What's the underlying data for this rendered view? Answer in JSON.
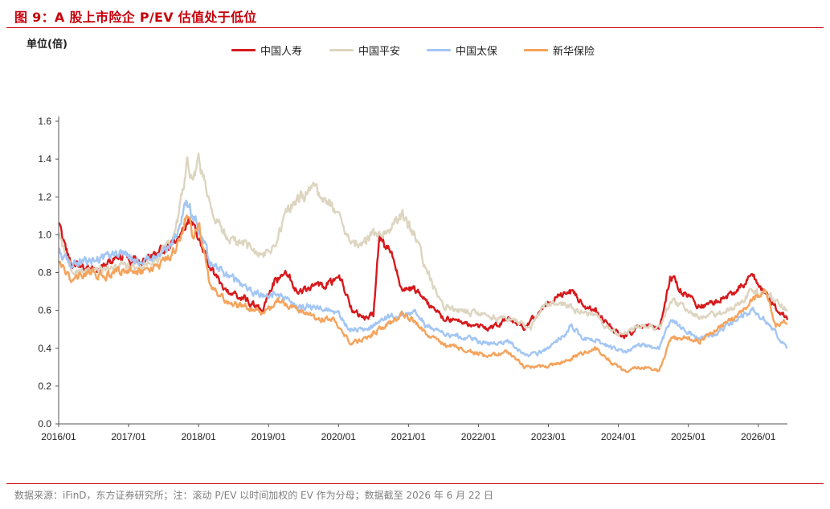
{
  "figure": {
    "title": "图 9：A 股上市险企 P/EV 估值处于低位",
    "footnote": "数据来源：iFinD，东方证券研究所；注：滚动 P/EV 以时间加权的 EV 作为分母；数据截至 2026 年 6 月 22 日",
    "accent_color": "#c7000b"
  },
  "chart_data": {
    "type": "line",
    "ylabel": "单位(倍)",
    "xlabel": "",
    "ylim": [
      0,
      1.6
    ],
    "yticks": [
      "0.0",
      "0.2",
      "0.4",
      "0.6",
      "0.8",
      "1.0",
      "1.2",
      "1.4",
      "1.6"
    ],
    "xticks": [
      "2016/01",
      "2017/01",
      "2018/01",
      "2019/01",
      "2020/01",
      "2021/01",
      "2022/01",
      "2023/01",
      "2024/01",
      "2025/01",
      "2026/01"
    ],
    "xlim": [
      "2016/01",
      "2026/06"
    ],
    "grid": false,
    "legend_position": "top",
    "series": [
      {
        "name": "中国人寿",
        "color": "#d7191c",
        "points": [
          [
            "2016/01",
            1.05
          ],
          [
            "2016/03",
            0.86
          ],
          [
            "2016/06",
            0.82
          ],
          [
            "2016/09",
            0.84
          ],
          [
            "2016/12",
            0.88
          ],
          [
            "2017/03",
            0.86
          ],
          [
            "2017/06",
            0.9
          ],
          [
            "2017/09",
            0.96
          ],
          [
            "2017/11",
            1.05
          ],
          [
            "2017/12",
            1.08
          ],
          [
            "2018/01",
            0.98
          ],
          [
            "2018/03",
            0.82
          ],
          [
            "2018/06",
            0.7
          ],
          [
            "2018/09",
            0.66
          ],
          [
            "2018/12",
            0.6
          ],
          [
            "2019/02",
            0.75
          ],
          [
            "2019/04",
            0.8
          ],
          [
            "2019/06",
            0.7
          ],
          [
            "2019/09",
            0.72
          ],
          [
            "2019/12",
            0.75
          ],
          [
            "2020/01",
            0.8
          ],
          [
            "2020/03",
            0.62
          ],
          [
            "2020/05",
            0.56
          ],
          [
            "2020/07",
            0.58
          ],
          [
            "2020/08",
            1.0
          ],
          [
            "2020/10",
            0.9
          ],
          [
            "2020/12",
            0.7
          ],
          [
            "2021/02",
            0.72
          ],
          [
            "2021/04",
            0.65
          ],
          [
            "2021/07",
            0.56
          ],
          [
            "2021/12",
            0.52
          ],
          [
            "2022/03",
            0.5
          ],
          [
            "2022/06",
            0.56
          ],
          [
            "2022/09",
            0.5
          ],
          [
            "2022/12",
            0.62
          ],
          [
            "2023/03",
            0.68
          ],
          [
            "2023/05",
            0.7
          ],
          [
            "2023/07",
            0.62
          ],
          [
            "2023/09",
            0.6
          ],
          [
            "2023/12",
            0.5
          ],
          [
            "2024/02",
            0.46
          ],
          [
            "2024/05",
            0.52
          ],
          [
            "2024/08",
            0.5
          ],
          [
            "2024/10",
            0.78
          ],
          [
            "2024/12",
            0.7
          ],
          [
            "2025/03",
            0.62
          ],
          [
            "2025/06",
            0.65
          ],
          [
            "2025/09",
            0.7
          ],
          [
            "2025/12",
            0.78
          ],
          [
            "2026/02",
            0.7
          ],
          [
            "2026/04",
            0.62
          ],
          [
            "2026/06",
            0.56
          ]
        ]
      },
      {
        "name": "中国平安",
        "color": "#ddd5c0",
        "points": [
          [
            "2016/01",
            1.0
          ],
          [
            "2016/03",
            0.82
          ],
          [
            "2016/06",
            0.8
          ],
          [
            "2016/09",
            0.82
          ],
          [
            "2016/12",
            0.84
          ],
          [
            "2017/03",
            0.82
          ],
          [
            "2017/06",
            0.88
          ],
          [
            "2017/09",
            1.0
          ],
          [
            "2017/11",
            1.38
          ],
          [
            "2017/12",
            1.3
          ],
          [
            "2018/01",
            1.4
          ],
          [
            "2018/03",
            1.15
          ],
          [
            "2018/06",
            0.98
          ],
          [
            "2018/09",
            0.95
          ],
          [
            "2018/12",
            0.88
          ],
          [
            "2019/02",
            0.95
          ],
          [
            "2019/04",
            1.1
          ],
          [
            "2019/06",
            1.2
          ],
          [
            "2019/09",
            1.24
          ],
          [
            "2019/12",
            1.15
          ],
          [
            "2020/01",
            1.12
          ],
          [
            "2020/03",
            0.95
          ],
          [
            "2020/06",
            0.98
          ],
          [
            "2020/09",
            1.02
          ],
          [
            "2020/12",
            1.1
          ],
          [
            "2021/02",
            1.0
          ],
          [
            "2021/04",
            0.82
          ],
          [
            "2021/07",
            0.62
          ],
          [
            "2021/10",
            0.6
          ],
          [
            "2022/01",
            0.58
          ],
          [
            "2022/04",
            0.56
          ],
          [
            "2022/07",
            0.55
          ],
          [
            "2022/10",
            0.5
          ],
          [
            "2022/12",
            0.62
          ],
          [
            "2023/03",
            0.65
          ],
          [
            "2023/06",
            0.6
          ],
          [
            "2023/09",
            0.57
          ],
          [
            "2023/12",
            0.48
          ],
          [
            "2024/02",
            0.48
          ],
          [
            "2024/05",
            0.52
          ],
          [
            "2024/08",
            0.5
          ],
          [
            "2024/10",
            0.65
          ],
          [
            "2024/12",
            0.62
          ],
          [
            "2025/03",
            0.56
          ],
          [
            "2025/06",
            0.58
          ],
          [
            "2025/09",
            0.62
          ],
          [
            "2025/12",
            0.7
          ],
          [
            "2026/03",
            0.68
          ],
          [
            "2026/06",
            0.6
          ]
        ]
      },
      {
        "name": "中国太保",
        "color": "#a3c6f4",
        "points": [
          [
            "2016/01",
            0.92
          ],
          [
            "2016/03",
            0.84
          ],
          [
            "2016/06",
            0.86
          ],
          [
            "2016/09",
            0.88
          ],
          [
            "2016/12",
            0.9
          ],
          [
            "2017/03",
            0.85
          ],
          [
            "2017/06",
            0.88
          ],
          [
            "2017/09",
            0.98
          ],
          [
            "2017/11",
            1.18
          ],
          [
            "2017/12",
            1.1
          ],
          [
            "2018/01",
            1.05
          ],
          [
            "2018/03",
            0.85
          ],
          [
            "2018/06",
            0.78
          ],
          [
            "2018/09",
            0.72
          ],
          [
            "2018/12",
            0.68
          ],
          [
            "2019/03",
            0.68
          ],
          [
            "2019/06",
            0.62
          ],
          [
            "2019/09",
            0.62
          ],
          [
            "2019/12",
            0.6
          ],
          [
            "2020/01",
            0.58
          ],
          [
            "2020/03",
            0.5
          ],
          [
            "2020/06",
            0.5
          ],
          [
            "2020/09",
            0.56
          ],
          [
            "2020/12",
            0.58
          ],
          [
            "2021/02",
            0.6
          ],
          [
            "2021/04",
            0.52
          ],
          [
            "2021/07",
            0.48
          ],
          [
            "2021/12",
            0.45
          ],
          [
            "2022/03",
            0.42
          ],
          [
            "2022/06",
            0.44
          ],
          [
            "2022/09",
            0.36
          ],
          [
            "2022/12",
            0.38
          ],
          [
            "2023/03",
            0.45
          ],
          [
            "2023/05",
            0.52
          ],
          [
            "2023/07",
            0.45
          ],
          [
            "2023/09",
            0.44
          ],
          [
            "2023/12",
            0.4
          ],
          [
            "2024/02",
            0.38
          ],
          [
            "2024/05",
            0.42
          ],
          [
            "2024/08",
            0.4
          ],
          [
            "2024/10",
            0.55
          ],
          [
            "2024/12",
            0.5
          ],
          [
            "2025/03",
            0.45
          ],
          [
            "2025/06",
            0.48
          ],
          [
            "2025/09",
            0.55
          ],
          [
            "2025/12",
            0.6
          ],
          [
            "2026/03",
            0.52
          ],
          [
            "2026/06",
            0.4
          ]
        ]
      },
      {
        "name": "新华保险",
        "color": "#f5a35c",
        "points": [
          [
            "2016/01",
            0.85
          ],
          [
            "2016/03",
            0.76
          ],
          [
            "2016/06",
            0.8
          ],
          [
            "2016/09",
            0.78
          ],
          [
            "2016/12",
            0.82
          ],
          [
            "2017/03",
            0.8
          ],
          [
            "2017/06",
            0.82
          ],
          [
            "2017/09",
            0.92
          ],
          [
            "2017/11",
            1.1
          ],
          [
            "2017/12",
            1.0
          ],
          [
            "2018/01",
            1.08
          ],
          [
            "2018/03",
            0.72
          ],
          [
            "2018/06",
            0.64
          ],
          [
            "2018/09",
            0.62
          ],
          [
            "2018/12",
            0.58
          ],
          [
            "2019/03",
            0.65
          ],
          [
            "2019/06",
            0.6
          ],
          [
            "2019/09",
            0.56
          ],
          [
            "2019/12",
            0.55
          ],
          [
            "2020/01",
            0.52
          ],
          [
            "2020/03",
            0.42
          ],
          [
            "2020/06",
            0.46
          ],
          [
            "2020/09",
            0.52
          ],
          [
            "2020/12",
            0.58
          ],
          [
            "2021/02",
            0.55
          ],
          [
            "2021/04",
            0.48
          ],
          [
            "2021/07",
            0.42
          ],
          [
            "2021/12",
            0.38
          ],
          [
            "2022/03",
            0.36
          ],
          [
            "2022/06",
            0.38
          ],
          [
            "2022/09",
            0.3
          ],
          [
            "2022/12",
            0.3
          ],
          [
            "2023/03",
            0.32
          ],
          [
            "2023/06",
            0.36
          ],
          [
            "2023/09",
            0.4
          ],
          [
            "2023/12",
            0.32
          ],
          [
            "2024/02",
            0.28
          ],
          [
            "2024/05",
            0.3
          ],
          [
            "2024/08",
            0.28
          ],
          [
            "2024/10",
            0.45
          ],
          [
            "2024/12",
            0.46
          ],
          [
            "2025/03",
            0.44
          ],
          [
            "2025/06",
            0.5
          ],
          [
            "2025/09",
            0.56
          ],
          [
            "2025/12",
            0.65
          ],
          [
            "2026/02",
            0.72
          ],
          [
            "2026/04",
            0.52
          ],
          [
            "2026/06",
            0.54
          ]
        ]
      }
    ]
  }
}
